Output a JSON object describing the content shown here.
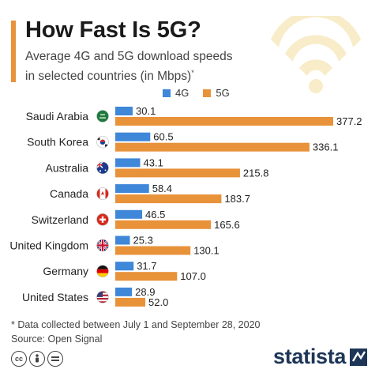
{
  "title": "How Fast Is 5G?",
  "subtitle_line1": "Average 4G and 5G download speeds",
  "subtitle_line2": "in selected countries (in Mbps)",
  "subtitle_mark": "*",
  "footnote": "* Data collected between July 1 and September 28, 2020",
  "source": "Source: Open Signal",
  "brand": "statista",
  "colors": {
    "accent": "#e8923a",
    "series_4g": "#3f87d8",
    "series_5g": "#e8923a",
    "brand": "#1d3557"
  },
  "legend": {
    "4g": "4G",
    "5g": "5G"
  },
  "icons": [
    "wifi-icon",
    "cc-icon",
    "by-icon",
    "nd-icon",
    "statista-logo-icon"
  ],
  "chart_data": {
    "type": "bar",
    "orientation": "horizontal",
    "categories": [
      "Saudi Arabia",
      "South Korea",
      "Australia",
      "Canada",
      "Switzerland",
      "United Kingdom",
      "Germany",
      "United States"
    ],
    "series": [
      {
        "name": "4G",
        "color": "#3f87d8",
        "values": [
          30.1,
          60.5,
          43.1,
          58.4,
          46.5,
          25.3,
          31.7,
          28.9
        ]
      },
      {
        "name": "5G",
        "color": "#e8923a",
        "values": [
          377.2,
          336.1,
          215.8,
          183.7,
          165.6,
          130.1,
          107.0,
          52.0
        ]
      }
    ],
    "value_labels": [
      [
        "30.1",
        "60.5",
        "43.1",
        "58.4",
        "46.5",
        "25.3",
        "31.7",
        "28.9"
      ],
      [
        "377.2",
        "336.1",
        "215.8",
        "183.7",
        "165.6",
        "130.1",
        "107.0",
        "52.0"
      ]
    ],
    "xlim": [
      0,
      377.2
    ],
    "grid": false,
    "legend_position": "top"
  }
}
